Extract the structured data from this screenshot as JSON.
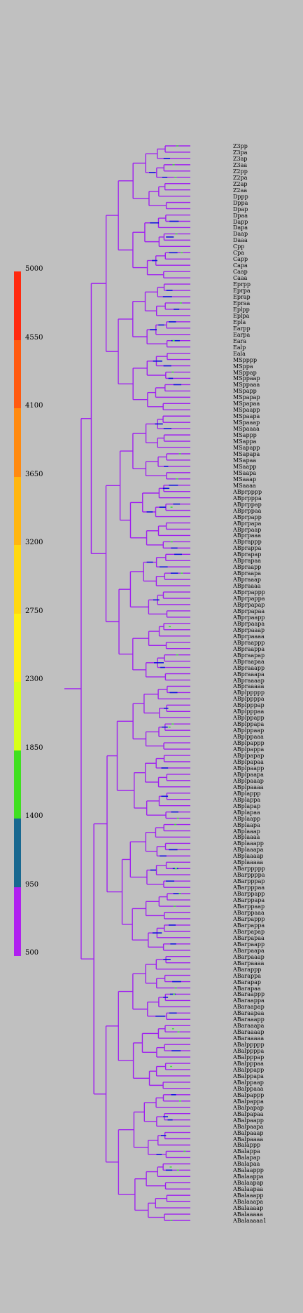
{
  "colors": {
    "background": "#c0c0c0",
    "branch": "#a020f0",
    "highlight_dark": "#1010e0",
    "highlight_green": "#40e040"
  },
  "scale": {
    "labels": [
      "5000",
      "4550",
      "4100",
      "3650",
      "3200",
      "2750",
      "2300",
      "1850",
      "1400",
      "950",
      "500"
    ],
    "segments": [
      {
        "color": "#ff2a10"
      },
      {
        "color": "#ff5a10"
      },
      {
        "color": "#ff8a10"
      },
      {
        "color": "#ffb610"
      },
      {
        "color": "#ffd810"
      },
      {
        "color": "#fff010"
      },
      {
        "color": "#d8ff18"
      },
      {
        "color": "#40e020"
      },
      {
        "color": "#186890"
      },
      {
        "color": "#b020f0"
      }
    ]
  },
  "leaves": [
    "Z3pp",
    "Z3pa",
    "Z3ap",
    "Z3aa",
    "Z2pp",
    "Z2pa",
    "Z2ap",
    "Z2aa",
    "Dppp",
    "Dppa",
    "Dpap",
    "Dpaa",
    "Dapp",
    "Dapa",
    "Daap",
    "Daaa",
    "Cpp",
    "Cpa",
    "Capp",
    "Capa",
    "Caap",
    "Caaa",
    "Eprpp",
    "Eprpa",
    "Eprap",
    "Epraa",
    "Eplpp",
    "Eplpa",
    "Epla",
    "Earpp",
    "Earpa",
    "Eara",
    "Ealp",
    "Eala",
    "MSpppp",
    "MSppa",
    "MSppap",
    "MSppaap",
    "MSppaaa",
    "MSpapp",
    "MSpapap",
    "MSpapaa",
    "MSpaapp",
    "MSpaapa",
    "MSpaaap",
    "MSpaaaa",
    "MSappp",
    "MSappa",
    "MSapapp",
    "MSapapa",
    "MSapaa",
    "MSaapp",
    "MSaapa",
    "MSaaap",
    "MSaaaa",
    "ABprpppp",
    "ABprpppa",
    "ABprppap",
    "ABprppaa",
    "ABprpapp",
    "ABprpapa",
    "ABprpaap",
    "ABprpaaa",
    "ABprappp",
    "ABprappa",
    "ABprapap",
    "ABprapaa",
    "ABpraapp",
    "ABpraapa",
    "ABpraaap",
    "ABpraaaa",
    "ABprpappp",
    "ABprpappa",
    "ABprpapap",
    "ABprpapaa",
    "ABprpaapp",
    "ABprpaapa",
    "ABprpaaap",
    "ABprpaaaa",
    "ABpraappp",
    "ABpraappa",
    "ABpraapap",
    "ABpraapaa",
    "ABpraaapp",
    "ABpraaapa",
    "ABpraaaap",
    "ABpraaaaa",
    "ABplppppp",
    "ABplppppa",
    "ABplpppap",
    "ABplpppaa",
    "ABplppapp",
    "ABplppapa",
    "ABplppaap",
    "ABplppaaa",
    "ABplpappp",
    "ABplpappa",
    "ABplpapap",
    "ABplpapaa",
    "ABplpaapp",
    "ABplpaapa",
    "ABplpaaap",
    "ABplpaaaa",
    "ABplappp",
    "ABplappa",
    "ABplapap",
    "ABplapaa",
    "ABplaapp",
    "ABplaapa",
    "ABplaaap",
    "ABplaaaa",
    "ABplaaapp",
    "ABplaaapa",
    "ABplaaaap",
    "ABplaaaaa",
    "ABarppppp",
    "ABarppppa",
    "ABarpppap",
    "ABarpppaa",
    "ABarppapp",
    "ABarppapa",
    "ABarppaap",
    "ABarppaaa",
    "ABarpappp",
    "ABarpappa",
    "ABarpapap",
    "ABarpapaa",
    "ABarpaapp",
    "ABarpaapa",
    "ABarpaaap",
    "ABarpaaaa",
    "ABarappp",
    "ABarappa",
    "ABarapap",
    "ABarapaa",
    "ABaraappp",
    "ABaraappa",
    "ABaraapap",
    "ABaraapaa",
    "ABaraaapp",
    "ABaraaapa",
    "ABaraaaap",
    "ABaraaaaa",
    "ABalppppp",
    "ABalppppa",
    "ABalpppap",
    "ABalpppaa",
    "ABalppapp",
    "ABalppapa",
    "ABalppaap",
    "ABalppaaa",
    "ABalpappp",
    "ABalpappa",
    "ABalpapap",
    "ABalpapaa",
    "ABalpaapp",
    "ABalpaapa",
    "ABalpaaap",
    "ABalpaaaa",
    "ABalappp",
    "ABalappa",
    "ABalapap",
    "ABalapaa",
    "ABalaappp",
    "ABalaappa",
    "ABalaapap",
    "ABalaapaa",
    "ABalaaapp",
    "ABalaaapa",
    "ABalaaaap",
    "ABalaaaaa",
    "ABalaaaaa1"
  ]
}
